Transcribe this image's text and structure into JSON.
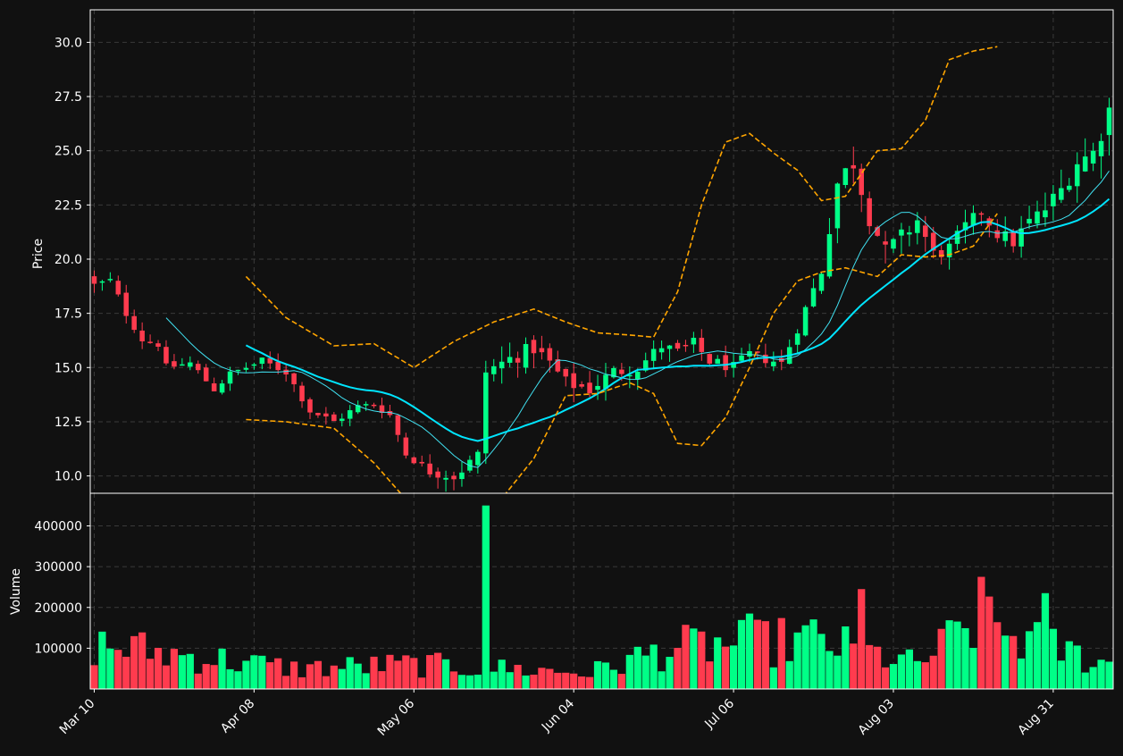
{
  "chart_data": [
    {
      "type": "candlestick",
      "ylabel": "Price",
      "ylim": [
        9.2,
        31.5
      ],
      "yticks": [
        10.0,
        12.5,
        15.0,
        17.5,
        20.0,
        22.5,
        25.0,
        27.5,
        30.0
      ],
      "ytick_labels": [
        "10.0",
        "12.5",
        "15.0",
        "17.5",
        "20.0",
        "22.5",
        "25.0",
        "27.5",
        "30.0"
      ],
      "grid": true,
      "bar_count": 128,
      "colors": {
        "up": "#00ff87",
        "down": "#ff3b4e",
        "ma_short": "#40e0f0",
        "ma_long": "#00e5ff",
        "bands": "#ffa500",
        "grid": "#3a3a3a",
        "frame": "#ffffff",
        "background": "#111111"
      },
      "close_keyframes": [
        [
          0,
          18.8
        ],
        [
          2,
          19.0
        ],
        [
          4,
          17.5
        ],
        [
          6,
          16.3
        ],
        [
          8,
          16.1
        ],
        [
          9,
          15.0
        ],
        [
          12,
          15.2
        ],
        [
          15,
          14.0
        ],
        [
          17,
          14.7
        ],
        [
          19,
          15.0
        ],
        [
          21,
          15.3
        ],
        [
          24,
          14.8
        ],
        [
          27,
          13.0
        ],
        [
          30,
          12.5
        ],
        [
          33,
          13.2
        ],
        [
          35,
          13.3
        ],
        [
          37,
          12.8
        ],
        [
          39,
          11.0
        ],
        [
          42,
          10.2
        ],
        [
          45,
          10.0
        ],
        [
          48,
          10.9
        ],
        [
          49,
          14.8
        ],
        [
          52,
          15.4
        ],
        [
          55,
          15.9
        ],
        [
          57,
          15.2
        ],
        [
          59,
          14.3
        ],
        [
          62,
          14.0
        ],
        [
          65,
          14.8
        ],
        [
          68,
          15.0
        ],
        [
          71,
          16.0
        ],
        [
          73,
          15.7
        ],
        [
          75,
          16.1
        ],
        [
          77,
          15.3
        ],
        [
          80,
          15.0
        ],
        [
          82,
          15.6
        ],
        [
          84,
          15.4
        ],
        [
          86,
          15.2
        ],
        [
          88,
          16.8
        ],
        [
          91,
          19.5
        ],
        [
          93,
          23.5
        ],
        [
          95,
          24.5
        ],
        [
          97,
          22.0
        ],
        [
          99,
          20.3
        ],
        [
          101,
          21.0
        ],
        [
          103,
          21.8
        ],
        [
          105,
          20.2
        ],
        [
          107,
          20.5
        ],
        [
          109,
          21.5
        ],
        [
          111,
          22.2
        ],
        [
          113,
          21.2
        ],
        [
          115,
          20.8
        ],
        [
          117,
          21.7
        ],
        [
          119,
          22.3
        ],
        [
          121,
          23.2
        ],
        [
          123,
          24.5
        ],
        [
          125,
          24.9
        ],
        [
          127,
          26.9
        ]
      ],
      "swing_keyframes": [
        [
          0,
          0.7
        ],
        [
          40,
          0.6
        ],
        [
          48,
          1.3
        ],
        [
          88,
          0.8
        ],
        [
          94,
          1.8
        ],
        [
          110,
          1.0
        ],
        [
          127,
          1.8
        ]
      ],
      "ma_short_window": 10,
      "ma_long_window": 20,
      "band_keyframes": [
        [
          19,
          19.2,
          12.6
        ],
        [
          24,
          17.3,
          12.5
        ],
        [
          30,
          16.0,
          12.2
        ],
        [
          35,
          16.1,
          10.6
        ],
        [
          40,
          15.0,
          8.5
        ],
        [
          45,
          16.2,
          8.5
        ],
        [
          50,
          17.1,
          8.5
        ],
        [
          55,
          17.7,
          10.8
        ],
        [
          59,
          17.1,
          13.7
        ],
        [
          63,
          16.6,
          13.8
        ],
        [
          67,
          16.5,
          14.3
        ],
        [
          70,
          16.4,
          13.8
        ],
        [
          73,
          18.5,
          11.5
        ],
        [
          76,
          22.5,
          11.4
        ],
        [
          79,
          25.4,
          12.7
        ],
        [
          82,
          25.8,
          15.0
        ],
        [
          85,
          24.9,
          17.5
        ],
        [
          88,
          24.1,
          19.0
        ],
        [
          91,
          22.7,
          19.4
        ],
        [
          94,
          22.9,
          19.6
        ],
        [
          98,
          25.0,
          19.2
        ],
        [
          101,
          25.1,
          20.2
        ],
        [
          104,
          26.4,
          20.1
        ],
        [
          107,
          29.2,
          20.2
        ],
        [
          110,
          29.6,
          20.6
        ],
        [
          113,
          29.8,
          22.1
        ]
      ]
    },
    {
      "type": "bar",
      "ylabel": "Volume",
      "ylim": [
        0,
        480000
      ],
      "yticks": [
        100000,
        200000,
        300000,
        400000
      ],
      "ytick_labels": [
        "100000",
        "200000",
        "300000",
        "400000"
      ],
      "grid": true,
      "volume_spikes": [
        [
          49,
          450000
        ],
        [
          96,
          245000
        ],
        [
          111,
          275000
        ],
        [
          82,
          185000
        ],
        [
          119,
          235000
        ]
      ],
      "volume_keyframes": [
        [
          0,
          110000
        ],
        [
          25,
          50000
        ],
        [
          40,
          60000
        ],
        [
          62,
          40000
        ],
        [
          72,
          100000
        ],
        [
          90,
          120000
        ],
        [
          103,
          60000
        ],
        [
          110,
          160000
        ],
        [
          127,
          60000
        ]
      ],
      "x_tick_labels": [
        "Mar 10",
        "Apr 08",
        "May 06",
        "Jun 04",
        "Jul 06",
        "Aug 03",
        "Aug 31"
      ],
      "x_tick_indices": [
        0,
        20,
        40,
        60,
        80,
        100,
        120
      ]
    }
  ]
}
